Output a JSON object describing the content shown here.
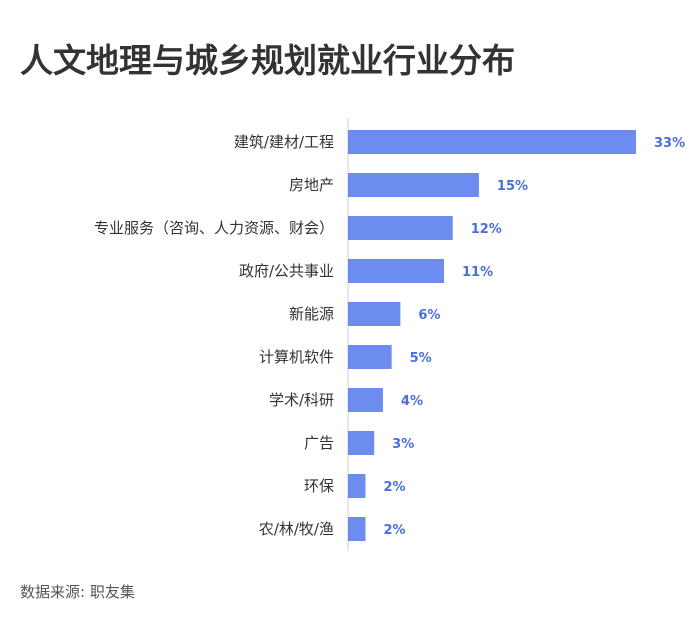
{
  "title": "人文地理与城乡规划就业行业分布",
  "source": "数据来源: 职友集",
  "colors": {
    "bar": "#6c8cf0",
    "value_label": "#4a6edc",
    "axis": "#cccccc"
  },
  "chart_data": {
    "type": "bar",
    "orientation": "horizontal",
    "title": "人文地理与城乡规划就业行业分布",
    "xlabel": "",
    "ylabel": "",
    "categories": [
      "建筑/建材/工程",
      "房地产",
      "专业服务（咨询、人力资源、财会）",
      "政府/公共事业",
      "新能源",
      "计算机软件",
      "学术/科研",
      "广告",
      "环保",
      "农/林/牧/渔"
    ],
    "values": [
      33,
      15,
      12,
      11,
      6,
      5,
      4,
      3,
      2,
      2
    ],
    "value_labels": [
      "33%",
      "15%",
      "12%",
      "11%",
      "6%",
      "5%",
      "4%",
      "3%",
      "2%",
      "2%"
    ],
    "xlim": [
      0,
      33
    ],
    "grid": false,
    "legend": "none"
  }
}
